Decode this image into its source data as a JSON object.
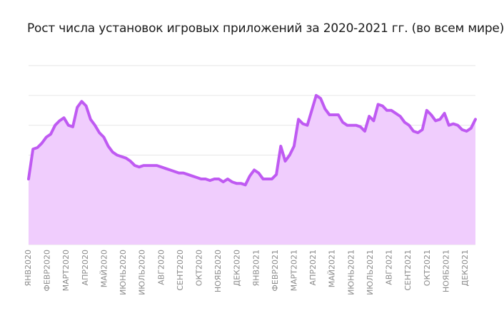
{
  "title": "Рост числа установок игровых приложений за 2020-2021 гг. (во всем мире)",
  "chart_data": {
    "type": "area",
    "title": "Рост числа установок игровых приложений за 2020-2021 гг. (во всем мире)",
    "xlabel": "",
    "ylabel": "",
    "grid": true,
    "colors": {
      "line": "#bf5af2",
      "fill": "#f0cdfd",
      "grid": "#e6e6e6"
    },
    "tick_labels": [
      "ЯНВ2020",
      "ФЕВР2020",
      "МАРТ2020",
      "АПР2020",
      "МАЙ2020",
      "ИЮНЬ2020",
      "ИЮЛЬ2020",
      "АВГ2020",
      "СЕНТ2020",
      "ОКТ2020",
      "НОЯБ2020",
      "ДЕК2020",
      "ЯНВ2021",
      "ФЕВР2021",
      "МАРТ2021",
      "АПР2021",
      "МАЙ2021",
      "ИЮНЬ2021",
      "ИЮЛЬ2021",
      "АВГ2021",
      "СЕНТ2021",
      "ОКТ2021",
      "НОЯБ2021",
      "ДЕК2021"
    ],
    "ylim": [
      0,
      6
    ],
    "values": [
      2.2,
      3.2,
      3.25,
      3.4,
      3.6,
      3.7,
      4.0,
      4.15,
      4.25,
      4.0,
      3.95,
      4.6,
      4.8,
      4.65,
      4.2,
      4.0,
      3.75,
      3.6,
      3.3,
      3.1,
      3.0,
      2.95,
      2.9,
      2.8,
      2.65,
      2.6,
      2.65,
      2.65,
      2.65,
      2.65,
      2.6,
      2.55,
      2.5,
      2.45,
      2.4,
      2.4,
      2.35,
      2.3,
      2.25,
      2.2,
      2.2,
      2.15,
      2.2,
      2.2,
      2.1,
      2.2,
      2.1,
      2.05,
      2.05,
      2.0,
      2.3,
      2.5,
      2.4,
      2.2,
      2.2,
      2.2,
      2.35,
      3.3,
      2.8,
      3.0,
      3.3,
      4.2,
      4.05,
      4.0,
      4.5,
      5.0,
      4.9,
      4.55,
      4.35,
      4.35,
      4.35,
      4.1,
      4.0,
      4.0,
      4.0,
      3.95,
      3.8,
      4.3,
      4.15,
      4.7,
      4.65,
      4.5,
      4.5,
      4.4,
      4.3,
      4.1,
      4.0,
      3.8,
      3.75,
      3.85,
      4.5,
      4.35,
      4.15,
      4.2,
      4.4,
      4.0,
      4.05,
      4.0,
      3.85,
      3.8,
      3.9,
      4.2
    ]
  }
}
